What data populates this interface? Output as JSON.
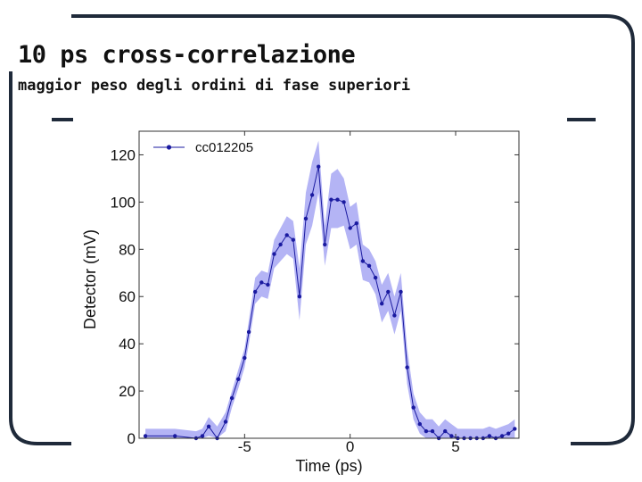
{
  "slide": {
    "title": "10 ps cross-correlazione",
    "subtitle": "maggior peso degli ordini di fase superiori",
    "frame_color": "#1f2a3a"
  },
  "chart_data": {
    "type": "line",
    "title": "",
    "xlabel": "Time (ps)",
    "ylabel": "Detector (mV)",
    "xlim": [
      -10,
      8
    ],
    "ylim": [
      0,
      130
    ],
    "x_ticks": [
      -5,
      0,
      5
    ],
    "y_ticks": [
      0,
      20,
      40,
      60,
      80,
      100,
      120
    ],
    "grid": false,
    "legend": "top-left",
    "line_color": "#1a1aa0",
    "band_color": "#b4b4f5",
    "series": [
      {
        "name": "cc012205",
        "x": [
          -9.7,
          -8.3,
          -7.3,
          -7.0,
          -6.7,
          -6.3,
          -5.9,
          -5.6,
          -5.3,
          -5.0,
          -4.8,
          -4.5,
          -4.2,
          -3.9,
          -3.6,
          -3.3,
          -3.0,
          -2.7,
          -2.4,
          -2.1,
          -1.8,
          -1.5,
          -1.2,
          -0.9,
          -0.6,
          -0.3,
          0.0,
          0.3,
          0.6,
          0.9,
          1.2,
          1.5,
          1.8,
          2.1,
          2.4,
          2.7,
          3.0,
          3.3,
          3.6,
          3.9,
          4.2,
          4.5,
          4.8,
          5.1,
          5.4,
          5.7,
          6.0,
          6.3,
          6.6,
          6.9,
          7.2,
          7.5,
          7.8
        ],
        "y": [
          1,
          1,
          0,
          1,
          5,
          0,
          7,
          17,
          25,
          34,
          45,
          62,
          66,
          65,
          78,
          82,
          86,
          84,
          60,
          93,
          103,
          115,
          82,
          101,
          101,
          100,
          89,
          91,
          75,
          73,
          68,
          57,
          62,
          52,
          62,
          30,
          13,
          6,
          3,
          3,
          0,
          3,
          1,
          0,
          0,
          0,
          0,
          0,
          1,
          0,
          1,
          2,
          4
        ],
        "upper": [
          4,
          4,
          3,
          4,
          9,
          5,
          11,
          20,
          29,
          38,
          50,
          68,
          71,
          70,
          84,
          89,
          94,
          92,
          72,
          104,
          117,
          126,
          90,
          112,
          114,
          110,
          98,
          100,
          82,
          80,
          75,
          65,
          70,
          60,
          70,
          38,
          19,
          11,
          8,
          8,
          5,
          8,
          6,
          4,
          4,
          4,
          4,
          4,
          5,
          4,
          5,
          6,
          8
        ],
        "lower": [
          0,
          0,
          0,
          0,
          1,
          0,
          3,
          13,
          21,
          30,
          40,
          57,
          60,
          59,
          72,
          75,
          78,
          76,
          50,
          82,
          90,
          104,
          73,
          89,
          89,
          90,
          80,
          82,
          67,
          66,
          61,
          49,
          54,
          44,
          54,
          23,
          8,
          2,
          0,
          0,
          0,
          0,
          0,
          0,
          0,
          0,
          0,
          0,
          0,
          0,
          0,
          0,
          0
        ]
      }
    ]
  }
}
